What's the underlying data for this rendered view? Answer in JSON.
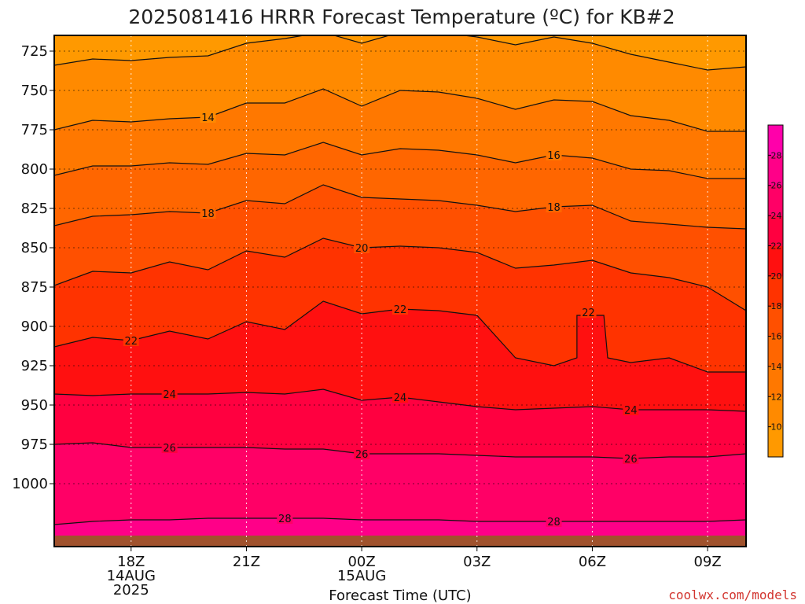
{
  "chart_data": {
    "type": "contour",
    "title": "2025081416 HRRR Forecast Temperature (ºC) for KB#2",
    "xlabel": "Forecast Time (UTC)",
    "credit": "coolwx.com/models",
    "colors": {
      "credit": "#d2352f",
      "ground": "#a0522d",
      "contour_line": "#111111",
      "grid": "#7a7a7a"
    },
    "y_axis": {
      "quantity": "pressure (hPa)",
      "range": [
        1040,
        715
      ],
      "ticks": [
        725,
        750,
        775,
        800,
        825,
        850,
        875,
        900,
        925,
        950,
        975,
        1000
      ]
    },
    "x_axis": {
      "quantity": "forecast hour",
      "range": [
        16,
        34
      ],
      "ticks": [
        {
          "hour": 18,
          "lines": [
            "18Z",
            "14AUG",
            "2025"
          ]
        },
        {
          "hour": 21,
          "lines": [
            "21Z"
          ]
        },
        {
          "hour": 24,
          "lines": [
            "00Z",
            "15AUG"
          ]
        },
        {
          "hour": 27,
          "lines": [
            "03Z"
          ]
        },
        {
          "hour": 30,
          "lines": [
            "06Z"
          ]
        },
        {
          "hour": 33,
          "lines": [
            "09Z"
          ]
        }
      ]
    },
    "grid": "dotted",
    "colorbar": {
      "placement": "right",
      "levels": [
        8,
        10,
        12,
        14,
        16,
        18,
        20,
        22,
        24,
        26,
        28,
        30
      ],
      "tick_labels": [
        10,
        12,
        14,
        16,
        18,
        20,
        22,
        24,
        26,
        28
      ],
      "colors": [
        "#ff9900",
        "#ff8a00",
        "#ff7800",
        "#ff6600",
        "#ff5000",
        "#ff3300",
        "#ff1010",
        "#ff0040",
        "#ff0066",
        "#ff0088",
        "#ff00aa"
      ]
    },
    "surface_pressure_hpa": 1033,
    "contours": [
      {
        "level": 12,
        "points": [
          [
            16,
            734
          ],
          [
            17,
            730
          ],
          [
            18,
            731
          ],
          [
            19,
            729
          ],
          [
            20,
            728
          ],
          [
            21,
            720
          ],
          [
            22,
            717
          ],
          [
            23,
            713
          ],
          [
            24,
            720
          ],
          [
            25,
            713
          ],
          [
            26,
            713
          ],
          [
            27,
            716
          ],
          [
            28,
            721
          ],
          [
            29,
            716
          ],
          [
            30,
            720
          ],
          [
            31,
            727
          ],
          [
            32,
            732
          ],
          [
            33,
            737
          ],
          [
            34,
            735
          ]
        ]
      },
      {
        "level": 14,
        "points": [
          [
            16,
            775
          ],
          [
            17,
            769
          ],
          [
            18,
            770
          ],
          [
            19,
            768
          ],
          [
            20,
            767
          ],
          [
            21,
            758
          ],
          [
            22,
            758
          ],
          [
            23,
            749
          ],
          [
            24,
            760
          ],
          [
            25,
            750
          ],
          [
            26,
            751
          ],
          [
            27,
            755
          ],
          [
            28,
            762
          ],
          [
            29,
            756
          ],
          [
            30,
            757
          ],
          [
            31,
            766
          ],
          [
            32,
            769
          ],
          [
            33,
            776
          ],
          [
            34,
            776
          ]
        ]
      },
      {
        "level": 16,
        "points": [
          [
            16,
            804
          ],
          [
            17,
            798
          ],
          [
            18,
            798
          ],
          [
            19,
            796
          ],
          [
            20,
            797
          ],
          [
            21,
            790
          ],
          [
            22,
            791
          ],
          [
            23,
            783
          ],
          [
            24,
            791
          ],
          [
            25,
            787
          ],
          [
            26,
            788
          ],
          [
            27,
            791
          ],
          [
            28,
            796
          ],
          [
            29,
            791
          ],
          [
            30,
            793
          ],
          [
            31,
            800
          ],
          [
            32,
            801
          ],
          [
            33,
            806
          ],
          [
            34,
            806
          ]
        ]
      },
      {
        "level": 18,
        "points": [
          [
            16,
            836
          ],
          [
            17,
            830
          ],
          [
            18,
            829
          ],
          [
            19,
            827
          ],
          [
            20,
            828
          ],
          [
            21,
            820
          ],
          [
            22,
            822
          ],
          [
            23,
            810
          ],
          [
            24,
            818
          ],
          [
            25,
            819
          ],
          [
            26,
            820
          ],
          [
            27,
            823
          ],
          [
            28,
            827
          ],
          [
            29,
            824
          ],
          [
            30,
            823
          ],
          [
            31,
            833
          ],
          [
            32,
            835
          ],
          [
            33,
            837
          ],
          [
            34,
            838
          ]
        ]
      },
      {
        "level": 20,
        "points": [
          [
            16,
            874
          ],
          [
            17,
            865
          ],
          [
            18,
            866
          ],
          [
            19,
            859
          ],
          [
            20,
            864
          ],
          [
            21,
            852
          ],
          [
            22,
            856
          ],
          [
            23,
            844
          ],
          [
            24,
            850
          ],
          [
            25,
            849
          ],
          [
            26,
            850
          ],
          [
            27,
            853
          ],
          [
            28,
            863
          ],
          [
            29,
            861
          ],
          [
            30,
            858
          ],
          [
            31,
            866
          ],
          [
            32,
            869
          ],
          [
            33,
            875
          ],
          [
            34,
            890
          ]
        ]
      },
      {
        "level": 22,
        "points": [
          [
            16,
            913
          ],
          [
            17,
            907
          ],
          [
            18,
            909
          ],
          [
            19,
            903
          ],
          [
            20,
            908
          ],
          [
            21,
            897
          ],
          [
            22,
            902
          ],
          [
            23,
            884
          ],
          [
            24,
            892
          ],
          [
            25,
            889
          ],
          [
            26,
            890
          ],
          [
            27,
            893
          ],
          [
            28,
            920
          ],
          [
            29,
            925
          ],
          [
            29.6,
            920
          ],
          [
            29.6,
            893
          ],
          [
            30.3,
            893
          ],
          [
            30.4,
            920
          ],
          [
            31,
            923
          ],
          [
            32,
            920
          ],
          [
            33,
            929
          ],
          [
            34,
            929
          ]
        ]
      },
      {
        "level": 24,
        "points": [
          [
            16,
            943
          ],
          [
            17,
            944
          ],
          [
            18,
            943
          ],
          [
            19,
            943
          ],
          [
            20,
            943
          ],
          [
            21,
            942
          ],
          [
            22,
            943
          ],
          [
            23,
            940
          ],
          [
            24,
            947
          ],
          [
            25,
            945
          ],
          [
            26,
            948
          ],
          [
            27,
            951
          ],
          [
            28,
            953
          ],
          [
            29,
            952
          ],
          [
            30,
            951
          ],
          [
            31,
            953
          ],
          [
            32,
            953
          ],
          [
            33,
            953
          ],
          [
            34,
            954
          ]
        ]
      },
      {
        "level": 26,
        "points": [
          [
            16,
            975
          ],
          [
            17,
            974
          ],
          [
            18,
            977
          ],
          [
            19,
            977
          ],
          [
            20,
            977
          ],
          [
            21,
            977
          ],
          [
            22,
            978
          ],
          [
            23,
            978
          ],
          [
            24,
            981
          ],
          [
            25,
            981
          ],
          [
            26,
            981
          ],
          [
            27,
            982
          ],
          [
            28,
            983
          ],
          [
            29,
            983
          ],
          [
            30,
            983
          ],
          [
            31,
            984
          ],
          [
            32,
            983
          ],
          [
            33,
            983
          ],
          [
            34,
            981
          ]
        ]
      },
      {
        "level": 28,
        "points": [
          [
            16,
            1026
          ],
          [
            17,
            1024
          ],
          [
            18,
            1023
          ],
          [
            19,
            1023
          ],
          [
            20,
            1022
          ],
          [
            21,
            1022
          ],
          [
            22,
            1022
          ],
          [
            23,
            1022
          ],
          [
            24,
            1023
          ],
          [
            25,
            1023
          ],
          [
            26,
            1023
          ],
          [
            27,
            1024
          ],
          [
            28,
            1024
          ],
          [
            29,
            1024
          ],
          [
            30,
            1024
          ],
          [
            31,
            1024
          ],
          [
            32,
            1024
          ],
          [
            33,
            1024
          ],
          [
            34,
            1023
          ]
        ]
      }
    ],
    "contour_labels": [
      {
        "text": "14",
        "x": 20.0,
        "y": 767
      },
      {
        "text": "16",
        "x": 29.0,
        "y": 791
      },
      {
        "text": "18",
        "x": 20.0,
        "y": 828
      },
      {
        "text": "18",
        "x": 29.0,
        "y": 824
      },
      {
        "text": "20",
        "x": 24.0,
        "y": 850
      },
      {
        "text": "22",
        "x": 25.0,
        "y": 889
      },
      {
        "text": "22",
        "x": 18.0,
        "y": 909
      },
      {
        "text": "22",
        "x": 29.9,
        "y": 891
      },
      {
        "text": "24",
        "x": 19.0,
        "y": 943
      },
      {
        "text": "24",
        "x": 25.0,
        "y": 945
      },
      {
        "text": "24",
        "x": 31.0,
        "y": 953
      },
      {
        "text": "26",
        "x": 19.0,
        "y": 977
      },
      {
        "text": "26",
        "x": 24.0,
        "y": 981
      },
      {
        "text": "26",
        "x": 31.0,
        "y": 984
      },
      {
        "text": "28",
        "x": 22.0,
        "y": 1022
      },
      {
        "text": "28",
        "x": 29.0,
        "y": 1024
      }
    ]
  }
}
